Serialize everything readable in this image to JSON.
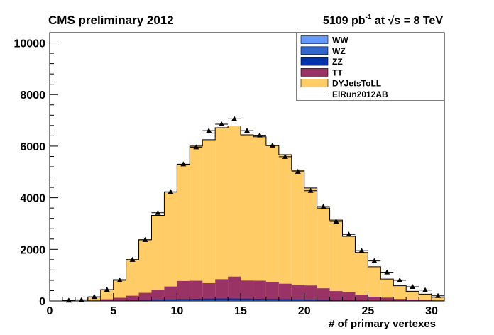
{
  "header": {
    "left": "CMS preliminary 2012",
    "lumi_value": "5109 pb",
    "lumi_exp": "-1",
    "energy_prefix": " at ",
    "sqrt": "√",
    "energy_suffix": "s = 8 TeV"
  },
  "chart_data": {
    "type": "bar",
    "stacked": true,
    "xlabel": "# of primary vertexes",
    "ylabel": "",
    "xlim": [
      0,
      31
    ],
    "ylim": [
      0,
      10400
    ],
    "x_ticks": [
      0,
      5,
      10,
      15,
      20,
      25,
      30
    ],
    "y_ticks": [
      0,
      2000,
      4000,
      6000,
      8000,
      10000
    ],
    "bins": [
      0,
      1,
      2,
      3,
      4,
      5,
      6,
      7,
      8,
      9,
      10,
      11,
      12,
      13,
      14,
      15,
      16,
      17,
      18,
      19,
      20,
      21,
      22,
      23,
      24,
      25,
      26,
      27,
      28,
      29,
      30
    ],
    "grid": false,
    "legend_position": "top-right",
    "series": [
      {
        "name": "WW",
        "color": "#6699ff",
        "values": [
          0,
          0,
          0,
          1,
          2,
          4,
          7,
          10,
          14,
          18,
          22,
          25,
          27,
          28,
          28,
          27,
          25,
          23,
          20,
          17,
          14,
          11,
          9,
          7,
          5,
          4,
          3,
          2,
          1,
          1,
          1
        ]
      },
      {
        "name": "WZ",
        "color": "#3366cc",
        "values": [
          0,
          0,
          0,
          1,
          2,
          4,
          6,
          9,
          12,
          15,
          18,
          20,
          22,
          23,
          23,
          22,
          21,
          19,
          17,
          14,
          12,
          10,
          8,
          6,
          5,
          3,
          2,
          2,
          1,
          1,
          1
        ]
      },
      {
        "name": "ZZ",
        "color": "#0033aa",
        "values": [
          0,
          0,
          0,
          1,
          3,
          6,
          10,
          15,
          21,
          27,
          33,
          37,
          40,
          42,
          42,
          40,
          38,
          35,
          31,
          27,
          23,
          19,
          15,
          12,
          9,
          7,
          5,
          4,
          3,
          2,
          1
        ]
      },
      {
        "name": "TT",
        "color": "#993366",
        "values": [
          0,
          0,
          5,
          20,
          60,
          110,
          180,
          280,
          390,
          500,
          700,
          700,
          600,
          750,
          850,
          700,
          700,
          660,
          600,
          550,
          550,
          450,
          350,
          320,
          220,
          150,
          120,
          70,
          50,
          40,
          20
        ]
      },
      {
        "name": "DYJetsToLL",
        "color": "#ffcc66",
        "values": [
          0,
          0,
          40,
          130,
          370,
          700,
          1400,
          2060,
          2880,
          3660,
          4510,
          5220,
          5560,
          5870,
          5840,
          5650,
          5580,
          5280,
          5000,
          4450,
          3780,
          3110,
          2750,
          2160,
          1640,
          1160,
          720,
          510,
          320,
          220,
          120
        ]
      }
    ],
    "data_series": {
      "name": "ElRun2012AB",
      "values": [
        0,
        20,
        40,
        160,
        440,
        800,
        1600,
        2370,
        3420,
        4230,
        5300,
        5960,
        6600,
        6850,
        7060,
        6600,
        6420,
        6030,
        5590,
        5010,
        4270,
        3660,
        3080,
        2580,
        1950,
        1550,
        1110,
        800,
        550,
        420,
        200
      ]
    }
  }
}
